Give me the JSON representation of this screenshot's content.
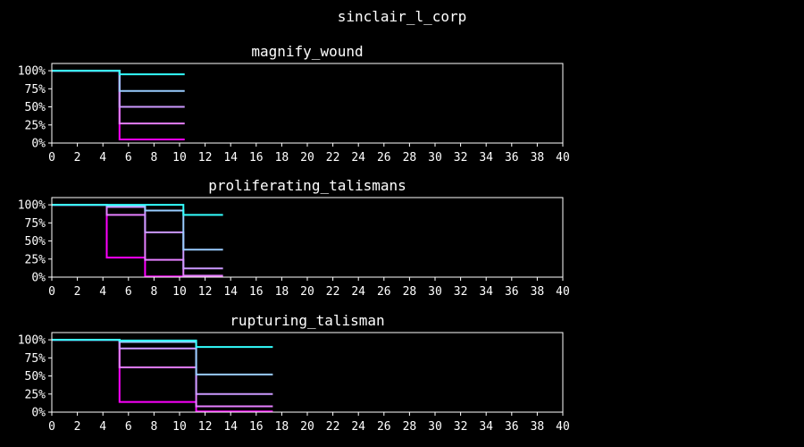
{
  "figure": {
    "title": "sinclair_l_corp"
  },
  "chart_data": [
    {
      "type": "line",
      "step": "post",
      "title": "magnify_wound",
      "xlabel": "",
      "ylabel": "",
      "xlim": [
        0,
        40
      ],
      "ylim": [
        0,
        1.1
      ],
      "xticks": [
        0,
        2,
        4,
        6,
        8,
        10,
        12,
        14,
        16,
        18,
        20,
        22,
        24,
        26,
        28,
        30,
        32,
        34,
        36,
        38,
        40
      ],
      "yticks": [
        0,
        0.25,
        0.5,
        0.75,
        1.0
      ],
      "ytick_labels": [
        "0%",
        "25%",
        "50%",
        "75%",
        "100%"
      ],
      "grid": false,
      "series": [
        {
          "color": "#ff00ff",
          "x": [
            0,
            5.3,
            10.4
          ],
          "y": [
            1.0,
            0.05,
            0.05
          ]
        },
        {
          "color": "#e67fff",
          "x": [
            0,
            5.3,
            10.4
          ],
          "y": [
            1.0,
            0.27,
            0.27
          ]
        },
        {
          "color": "#cc99ff",
          "x": [
            0,
            5.3,
            10.4
          ],
          "y": [
            1.0,
            0.5,
            0.5
          ]
        },
        {
          "color": "#99ccff",
          "x": [
            0,
            5.3,
            10.4
          ],
          "y": [
            1.0,
            0.72,
            0.72
          ]
        },
        {
          "color": "#33ffff",
          "x": [
            0,
            5.3,
            10.4
          ],
          "y": [
            1.0,
            0.95,
            0.95
          ]
        }
      ]
    },
    {
      "type": "line",
      "step": "post",
      "title": "proliferating_talismans",
      "xlabel": "",
      "ylabel": "",
      "xlim": [
        0,
        40
      ],
      "ylim": [
        0,
        1.1
      ],
      "xticks": [
        0,
        2,
        4,
        6,
        8,
        10,
        12,
        14,
        16,
        18,
        20,
        22,
        24,
        26,
        28,
        30,
        32,
        34,
        36,
        38,
        40
      ],
      "yticks": [
        0,
        0.25,
        0.5,
        0.75,
        1.0
      ],
      "ytick_labels": [
        "0%",
        "25%",
        "50%",
        "75%",
        "100%"
      ],
      "grid": false,
      "series": [
        {
          "color": "#ff00ff",
          "x": [
            0,
            4.3,
            7.3,
            10.3,
            13.4
          ],
          "y": [
            1.0,
            0.27,
            0.01,
            0.01,
            0.01
          ]
        },
        {
          "color": "#e67fff",
          "x": [
            0,
            4.3,
            7.3,
            10.3,
            13.4
          ],
          "y": [
            1.0,
            0.86,
            0.24,
            0.02,
            0.02
          ]
        },
        {
          "color": "#cc99ff",
          "x": [
            0,
            4.3,
            7.3,
            10.3,
            13.4
          ],
          "y": [
            1.0,
            0.97,
            0.62,
            0.12,
            0.12
          ]
        },
        {
          "color": "#99ccff",
          "x": [
            0,
            4.3,
            7.3,
            10.3,
            13.4
          ],
          "y": [
            1.0,
            0.99,
            0.92,
            0.38,
            0.38
          ]
        },
        {
          "color": "#33ffff",
          "x": [
            0,
            4.3,
            7.3,
            10.3,
            13.4
          ],
          "y": [
            1.0,
            1.0,
            1.0,
            0.86,
            0.86
          ]
        }
      ]
    },
    {
      "type": "line",
      "step": "post",
      "title": "rupturing_talisman",
      "xlabel": "",
      "ylabel": "",
      "xlim": [
        0,
        40
      ],
      "ylim": [
        0,
        1.1
      ],
      "xticks": [
        0,
        2,
        4,
        6,
        8,
        10,
        12,
        14,
        16,
        18,
        20,
        22,
        24,
        26,
        28,
        30,
        32,
        34,
        36,
        38,
        40
      ],
      "yticks": [
        0,
        0.25,
        0.5,
        0.75,
        1.0
      ],
      "ytick_labels": [
        "0%",
        "25%",
        "50%",
        "75%",
        "100%"
      ],
      "grid": false,
      "series": [
        {
          "color": "#ff00ff",
          "x": [
            0,
            5.3,
            11.3,
            17.3
          ],
          "y": [
            1.0,
            0.14,
            0.01,
            0.01
          ]
        },
        {
          "color": "#e67fff",
          "x": [
            0,
            5.3,
            11.3,
            17.3
          ],
          "y": [
            1.0,
            0.62,
            0.08,
            0.08
          ]
        },
        {
          "color": "#cc99ff",
          "x": [
            0,
            5.3,
            11.3,
            17.3
          ],
          "y": [
            1.0,
            0.88,
            0.25,
            0.25
          ]
        },
        {
          "color": "#99ccff",
          "x": [
            0,
            5.3,
            11.3,
            17.3
          ],
          "y": [
            1.0,
            0.97,
            0.52,
            0.52
          ]
        },
        {
          "color": "#33ffff",
          "x": [
            0,
            5.3,
            11.3,
            17.3
          ],
          "y": [
            1.0,
            0.99,
            0.9,
            0.9
          ]
        }
      ]
    }
  ]
}
